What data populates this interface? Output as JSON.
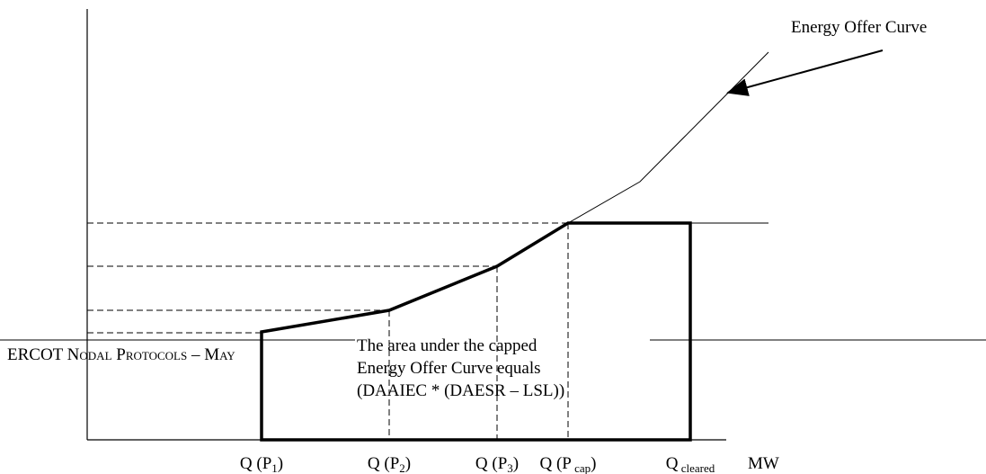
{
  "header": {
    "text": "ERCOT Nodal Protocols – May"
  },
  "callout": {
    "label": "Energy Offer Curve"
  },
  "note": {
    "lines": [
      "The area under the capped",
      "Energy Offer Curve equals",
      "(DAAIEC * (DAESR – LSL))"
    ]
  },
  "x_labels": [
    {
      "main": "Q (P",
      "sub": "1",
      "end": ")"
    },
    {
      "main": "Q (P",
      "sub": "2",
      "end": ")"
    },
    {
      "main": "Q (P",
      "sub": "3",
      "end": ")"
    },
    {
      "main": "Q (P",
      "sub": " cap",
      "end": ")"
    },
    {
      "main": "Q",
      "sub": " cleared"
    }
  ],
  "axis_label": "MW"
}
